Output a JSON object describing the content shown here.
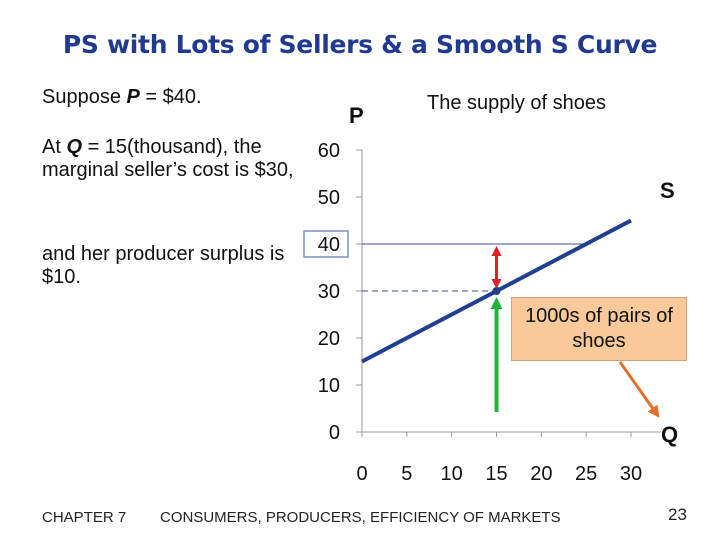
{
  "title": "PS with Lots of Sellers & a Smooth S Curve",
  "left_text": {
    "line1_pre": "Suppose ",
    "line1_var": "P",
    "line1_post": " = $40.",
    "line2_pre": "At ",
    "line2_var": "Q",
    "line2_post": " = 15(thousand), the marginal seller’s cost is $30,",
    "line3": "and her producer surplus is $10."
  },
  "chart_data": {
    "type": "line",
    "title": "The supply of shoes",
    "xlabel": "Q",
    "ylabel": "P",
    "x_ticks": [
      0,
      5,
      10,
      15,
      20,
      25,
      30
    ],
    "y_ticks": [
      0,
      10,
      20,
      30,
      40,
      50,
      60
    ],
    "xlim": [
      0,
      30
    ],
    "ylim": [
      0,
      60
    ],
    "grid": false,
    "series": [
      {
        "name": "S",
        "x": [
          0,
          30
        ],
        "y": [
          15,
          45
        ]
      }
    ],
    "price_line": 40,
    "marginal_seller": {
      "q": 15,
      "cost": 30,
      "price": 40,
      "producer_surplus": 10
    },
    "highlight_tick": 40,
    "annotation": "1000s of pairs of shoes"
  },
  "footer": {
    "chapter": "CHAPTER 7",
    "text": "CONSUMERS, PRODUCERS, EFFICIENCY OF MARKETS",
    "page": "23"
  },
  "colors": {
    "title": "#1f3a8f",
    "supply": "#1f3f8f",
    "price_line": "#3a4e8c",
    "surplus_arrow": "#e0202a",
    "cost_arrow": "#22b33a",
    "callout_fill": "#f9c99a",
    "callout_arrow": "#e0702a"
  }
}
